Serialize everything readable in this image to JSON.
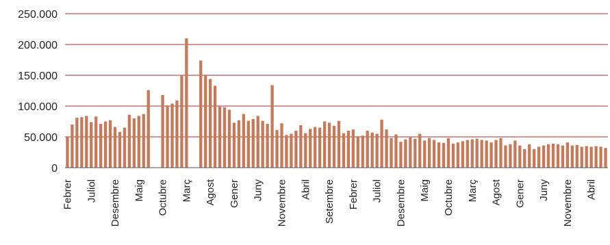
{
  "chart_data": {
    "type": "bar",
    "title": "",
    "xlabel": "",
    "ylabel": "",
    "ylim": [
      0,
      250000
    ],
    "grid": true,
    "y_ticks": [
      {
        "value": 0,
        "label": "0"
      },
      {
        "value": 50000,
        "label": "50.000"
      },
      {
        "value": 100000,
        "label": "100.000"
      },
      {
        "value": 150000,
        "label": "150.000"
      },
      {
        "value": 200000,
        "label": "200.000"
      },
      {
        "value": 250000,
        "label": "250.000"
      }
    ],
    "x_tick_labels": [
      {
        "index": 0,
        "label": "Febrer"
      },
      {
        "index": 5,
        "label": "Juliol"
      },
      {
        "index": 10,
        "label": "Desembre"
      },
      {
        "index": 15,
        "label": "Maig"
      },
      {
        "index": 20,
        "label": "Octubre"
      },
      {
        "index": 25,
        "label": "Març"
      },
      {
        "index": 30,
        "label": "Agost"
      },
      {
        "index": 35,
        "label": "Gener"
      },
      {
        "index": 40,
        "label": "Juny"
      },
      {
        "index": 45,
        "label": "Novembre"
      },
      {
        "index": 50,
        "label": "Abril"
      },
      {
        "index": 55,
        "label": "Setembre"
      },
      {
        "index": 60,
        "label": "Febrer"
      },
      {
        "index": 65,
        "label": "Juliol"
      },
      {
        "index": 70,
        "label": "Desembre"
      },
      {
        "index": 75,
        "label": "Maig"
      },
      {
        "index": 80,
        "label": "Octubre"
      },
      {
        "index": 85,
        "label": "Març"
      },
      {
        "index": 90,
        "label": "Agost"
      },
      {
        "index": 95,
        "label": "Gener"
      },
      {
        "index": 100,
        "label": "Juny"
      },
      {
        "index": 105,
        "label": "Novembre"
      },
      {
        "index": 110,
        "label": "Abril"
      }
    ],
    "values": [
      50000,
      70000,
      81000,
      82000,
      84000,
      74000,
      83000,
      71000,
      75000,
      77000,
      66000,
      58000,
      65000,
      86000,
      80000,
      84000,
      87000,
      126000,
      null,
      null,
      118000,
      101000,
      104000,
      109000,
      150000,
      210000,
      null,
      null,
      174000,
      150000,
      144000,
      133000,
      99000,
      98000,
      94000,
      73000,
      77000,
      87000,
      76000,
      79000,
      84000,
      76000,
      71000,
      134000,
      61000,
      72000,
      53000,
      55000,
      60000,
      69000,
      56000,
      63000,
      66000,
      65000,
      75000,
      73000,
      68000,
      76000,
      56000,
      60000,
      62000,
      51000,
      52000,
      60000,
      57000,
      55000,
      78000,
      62000,
      48000,
      54000,
      42000,
      46000,
      49000,
      47000,
      55000,
      44000,
      48000,
      45000,
      41000,
      40000,
      48000,
      39000,
      41000,
      43000,
      45000,
      46000,
      47000,
      45000,
      44000,
      41000,
      45000,
      48000,
      36000,
      38000,
      44000,
      36000,
      30000,
      38000,
      30000,
      34000,
      36000,
      38000,
      39000,
      38000,
      36000,
      41000,
      36000,
      37000,
      34000,
      35000,
      34000,
      35000,
      34000,
      32000
    ],
    "colors": {
      "bar": "#C67A5A",
      "grid": "#B52A2A",
      "axis": "#555555",
      "text": "#222222"
    }
  }
}
